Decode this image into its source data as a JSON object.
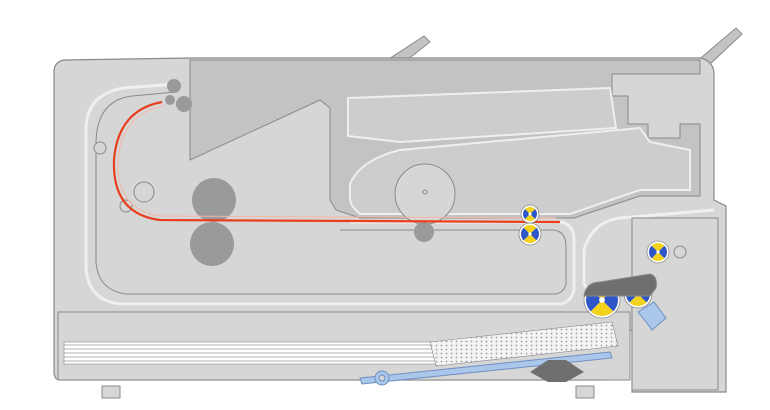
{
  "diagram": {
    "subject": "printer-paper-path-cross-section",
    "colors": {
      "background": "#ffffff",
      "body": "#d6d6d6",
      "body_dark": "#c3c3c3",
      "cavity": "#cdcdcd",
      "stroke": "#8a8a8a",
      "stroke_light": "#efefef",
      "roller": "#9a9a9a",
      "paper_path": "#e8401f",
      "tray_arm": "#aac6ea",
      "tray_arm_stroke": "#6f8fbf",
      "sensor_blue": "#2f56c8",
      "sensor_yellow": "#f3d21d",
      "pad": "#6f6f6f"
    },
    "icons": {
      "sensor": "quartered-disc-icon",
      "roller": "roller-icon",
      "hinge": "hinge-pin-icon"
    }
  }
}
